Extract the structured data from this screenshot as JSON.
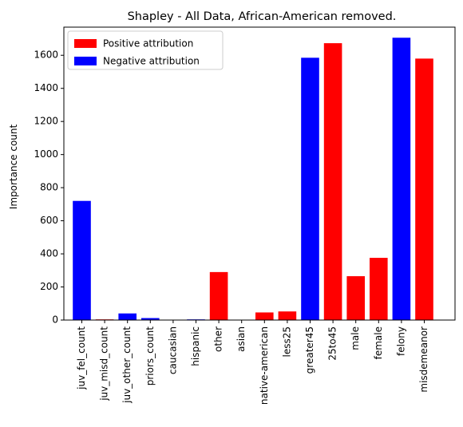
{
  "chart_data": {
    "type": "bar",
    "title": "Shapley - All Data, African-American removed.",
    "xlabel": "",
    "ylabel": "Importance count",
    "ylim": [
      0,
      1770
    ],
    "yticks": [
      0,
      200,
      400,
      600,
      800,
      1000,
      1200,
      1400,
      1600
    ],
    "categories": [
      "juv_fel_count",
      "juv_misd_count",
      "juv_other_count",
      "priors_count",
      "caucasian",
      "hispanic",
      "other",
      "asian",
      "native-american",
      "less25",
      "greater45",
      "25to45",
      "male",
      "female",
      "felony",
      "misdemeanor"
    ],
    "values": [
      720,
      4,
      40,
      12,
      0,
      4,
      290,
      0,
      46,
      52,
      1585,
      1673,
      265,
      376,
      1706,
      1580
    ],
    "attribution": [
      "negative",
      "positive",
      "negative",
      "negative",
      "positive",
      "negative",
      "positive",
      "positive",
      "positive",
      "positive",
      "negative",
      "positive",
      "positive",
      "positive",
      "negative",
      "positive"
    ],
    "colors": {
      "positive": "#ff0000",
      "negative": "#0000ff"
    },
    "legend": {
      "placement": "top-left",
      "entries": [
        {
          "label": "Positive attribution",
          "key": "positive"
        },
        {
          "label": "Negative attribution",
          "key": "negative"
        }
      ]
    },
    "grid": false
  }
}
